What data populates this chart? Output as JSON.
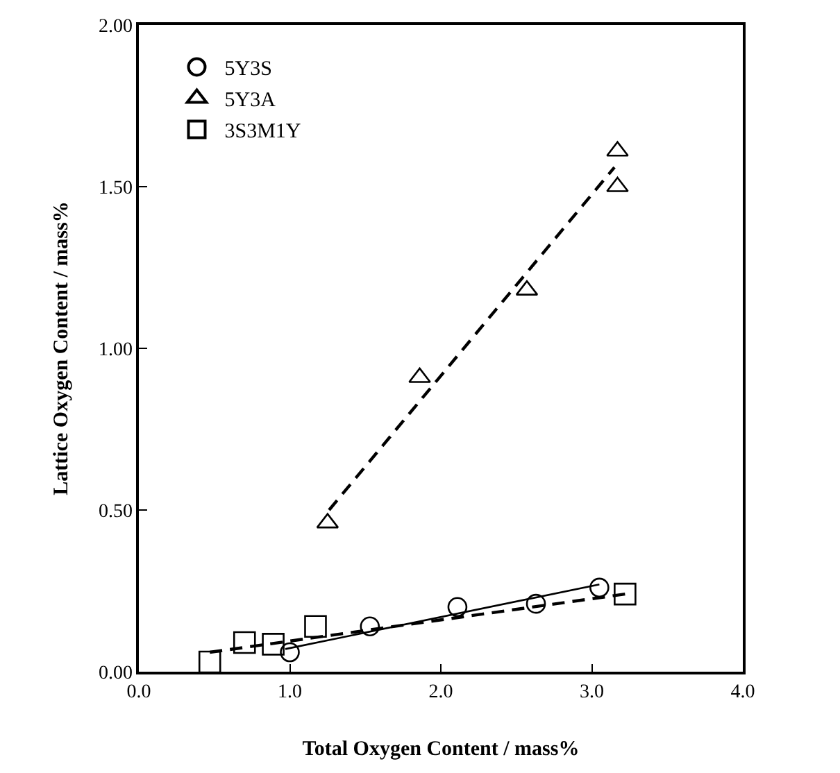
{
  "chart_data": {
    "type": "scatter",
    "xlabel": "Total Oxygen Content / mass%",
    "ylabel": "Lattice Oxygen Content / mass%",
    "xlim": [
      0,
      4
    ],
    "ylim": [
      0,
      2
    ],
    "xticks": [
      {
        "value": 0,
        "label": "0.0"
      },
      {
        "value": 1,
        "label": "1.0"
      },
      {
        "value": 2,
        "label": "2.0"
      },
      {
        "value": 3,
        "label": "3.0"
      },
      {
        "value": 4,
        "label": "4.0"
      }
    ],
    "yticks": [
      {
        "value": 0,
        "label": "0.00"
      },
      {
        "value": 0.5,
        "label": "0.50"
      },
      {
        "value": 1,
        "label": "1.00"
      },
      {
        "value": 1.5,
        "label": "1.50"
      },
      {
        "value": 2,
        "label": "2.00"
      }
    ],
    "legend": "top left",
    "series": [
      {
        "name": "5Y3S",
        "color": "#000000",
        "marker": "circle",
        "x": [
          1.0,
          1.53,
          2.11,
          2.63,
          3.05
        ],
        "values": [
          0.06,
          0.14,
          0.2,
          0.21,
          0.26
        ]
      },
      {
        "name": "5Y3A",
        "color": "#000000",
        "marker": "triangle",
        "x": [
          1.25,
          1.86,
          2.57,
          3.17,
          3.17
        ],
        "values": [
          0.46,
          0.91,
          1.18,
          1.5,
          1.61
        ]
      },
      {
        "name": "3S3M1Y",
        "color": "#000000",
        "marker": "square",
        "x": [
          0.47,
          0.7,
          0.89,
          1.17,
          3.22
        ],
        "values": [
          0.03,
          0.09,
          0.085,
          0.14,
          0.24
        ]
      },
      {
        "type": "line",
        "color": "#000000",
        "line_style": "dashed",
        "x": [
          1.26,
          3.15
        ],
        "values": [
          0.5,
          1.56
        ]
      },
      {
        "type": "line",
        "color": "#000000",
        "line_style": "solid",
        "x": [
          0.97,
          3.05
        ],
        "values": [
          0.07,
          0.27
        ]
      },
      {
        "type": "line",
        "color": "#000000",
        "line_style": "dashed",
        "x": [
          0.47,
          3.22
        ],
        "values": [
          0.06,
          0.24
        ]
      }
    ]
  }
}
